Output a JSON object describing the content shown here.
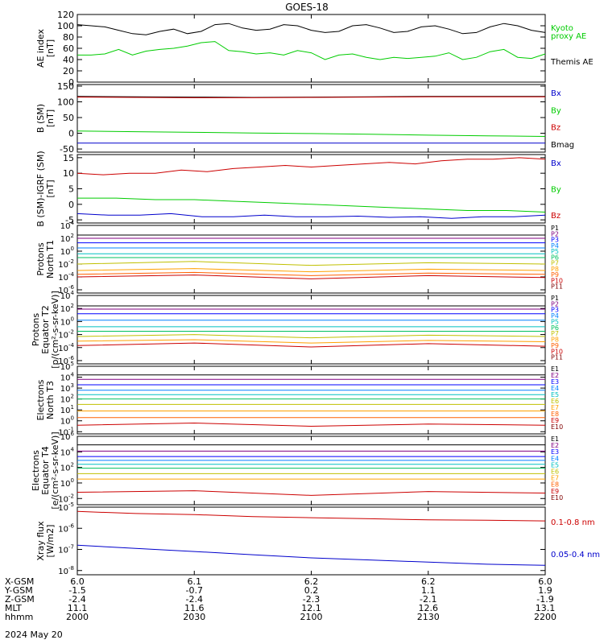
{
  "title": "GOES-18",
  "date_label": "2024 May 20",
  "ephemeris": {
    "rows": [
      {
        "label": "X-GSM",
        "values": [
          "6.0",
          "6.1",
          "6.2",
          "6.2",
          "6.0"
        ]
      },
      {
        "label": "Y-GSM",
        "values": [
          "-1.5",
          "-0.7",
          "0.2",
          "1.1",
          "1.9"
        ]
      },
      {
        "label": "Z-GSM",
        "values": [
          "-2.4",
          "-2.4",
          "-2.3",
          "-2.1",
          "-1.9"
        ]
      },
      {
        "label": "MLT",
        "values": [
          "11.1",
          "11.6",
          "12.1",
          "12.6",
          "13.1"
        ]
      },
      {
        "label": "hhmm",
        "values": [
          "2000",
          "2030",
          "2100",
          "2130",
          "2200"
        ]
      }
    ]
  },
  "chart_data": [
    {
      "id": "ae",
      "type": "line",
      "ylabel": [
        "AE index",
        "[nT]"
      ],
      "ylim": [
        0,
        120
      ],
      "ticks": [
        {
          "v": 0,
          "l": "0"
        },
        {
          "v": 20,
          "l": "20"
        },
        {
          "v": 40,
          "l": "40"
        },
        {
          "v": 60,
          "l": "60"
        },
        {
          "v": 80,
          "l": "80"
        },
        {
          "v": 100,
          "l": "100"
        },
        {
          "v": 120,
          "l": "120"
        }
      ],
      "legend": [
        {
          "label": "Kyoto",
          "color": "#00cc00"
        },
        {
          "label": "proxy AE",
          "color": "#00cc00"
        },
        {
          "label": "Themis AE",
          "color": "#000000"
        }
      ],
      "series": [
        {
          "color": "#000000",
          "values": [
            102,
            100,
            98,
            92,
            86,
            84,
            90,
            94,
            86,
            90,
            102,
            104,
            96,
            92,
            94,
            102,
            100,
            92,
            88,
            90,
            100,
            102,
            96,
            88,
            90,
            98,
            100,
            94,
            86,
            88,
            98,
            104,
            100,
            92,
            88
          ]
        },
        {
          "color": "#00cc00",
          "values": [
            48,
            48,
            50,
            58,
            48,
            55,
            58,
            60,
            64,
            70,
            72,
            56,
            54,
            50,
            52,
            48,
            56,
            52,
            40,
            48,
            50,
            44,
            40,
            44,
            42,
            44,
            46,
            52,
            40,
            44,
            54,
            58,
            44,
            42,
            50
          ]
        }
      ]
    },
    {
      "id": "b",
      "type": "line",
      "ylabel": [
        "B (SM)",
        "[nT]"
      ],
      "ylim": [
        -60,
        155
      ],
      "ticks": [
        {
          "v": -50,
          "l": "-50"
        },
        {
          "v": 0,
          "l": "0"
        },
        {
          "v": 50,
          "l": "50"
        },
        {
          "v": 100,
          "l": "100"
        },
        {
          "v": 150,
          "l": "150"
        }
      ],
      "legend": [
        {
          "label": "Bx",
          "color": "#0000cc"
        },
        {
          "label": "By",
          "color": "#00cc00"
        },
        {
          "label": "Bz",
          "color": "#cc0000"
        },
        {
          "label": "Bmag",
          "color": "#000000"
        }
      ],
      "series": [
        {
          "color": "#0000cc",
          "values": [
            -31,
            -31,
            -31,
            -31,
            -31,
            -31,
            -31,
            -31,
            -31
          ]
        },
        {
          "color": "#00cc00",
          "values": [
            7,
            5,
            3,
            1,
            -1,
            -3,
            -6,
            -8,
            -10
          ]
        },
        {
          "color": "#000000",
          "values": [
            117,
            116,
            115,
            114,
            115,
            116,
            117,
            117,
            117
          ]
        },
        {
          "color": "#cc0000",
          "values": [
            115,
            114,
            113,
            113,
            114,
            115,
            116,
            116,
            116
          ]
        }
      ]
    },
    {
      "id": "bdiff",
      "type": "line",
      "ylabel": [
        "B (SM)-IGRF (SM)",
        "[nT]"
      ],
      "ylim": [
        -6,
        16
      ],
      "ticks": [
        {
          "v": -5,
          "l": "-5"
        },
        {
          "v": 0,
          "l": "0"
        },
        {
          "v": 5,
          "l": "5"
        },
        {
          "v": 10,
          "l": "10"
        },
        {
          "v": 15,
          "l": "15"
        }
      ],
      "legend": [
        {
          "label": "Bx",
          "color": "#0000cc"
        },
        {
          "label": "By",
          "color": "#00cc00"
        },
        {
          "label": "Bz",
          "color": "#cc0000"
        }
      ],
      "series": [
        {
          "color": "#cc0000",
          "values": [
            10,
            9.5,
            10,
            10,
            11,
            10.5,
            11.5,
            12,
            12.5,
            12,
            12.5,
            13,
            13.5,
            13,
            14,
            14.5,
            14.5,
            15,
            14.5
          ]
        },
        {
          "color": "#00cc00",
          "values": [
            2,
            2,
            1.5,
            1.5,
            1,
            0.5,
            0,
            -0.5,
            -1,
            -1.5,
            -2,
            -2,
            -2.5
          ]
        },
        {
          "color": "#0000cc",
          "values": [
            -3,
            -3.5,
            -3.5,
            -3,
            -4,
            -4,
            -3.5,
            -4,
            -4,
            -3.8,
            -4.2,
            -4,
            -4.5,
            -4,
            -4,
            -3.5
          ]
        }
      ]
    },
    {
      "id": "p_north",
      "type": "line",
      "log": true,
      "ylabel": [
        "Protons",
        "North T1"
      ],
      "ylim_exp": [
        -6.5,
        4
      ],
      "ticks": [
        {
          "e": 4
        },
        {
          "e": 2
        },
        {
          "e": 0
        },
        {
          "e": -2
        },
        {
          "e": -4
        },
        {
          "e": -6
        }
      ],
      "legend": [
        {
          "label": "P1",
          "color": "#000000"
        },
        {
          "label": "P2",
          "color": "#800080"
        },
        {
          "label": "P3",
          "color": "#0000ff"
        },
        {
          "label": "P4",
          "color": "#0080ff"
        },
        {
          "label": "P5",
          "color": "#00c0c0"
        },
        {
          "label": "P6",
          "color": "#00c060"
        },
        {
          "label": "P7",
          "color": "#c0c000"
        },
        {
          "label": "P8",
          "color": "#ffa000"
        },
        {
          "label": "P9",
          "color": "#ff6000"
        },
        {
          "label": "P10",
          "color": "#cc0000"
        },
        {
          "label": "P11",
          "color": "#800000"
        }
      ],
      "series": [
        {
          "color": "#000000",
          "levels": [
            2.5
          ]
        },
        {
          "color": "#800080",
          "levels": [
            2.0
          ]
        },
        {
          "color": "#0000ff",
          "levels": [
            1.3
          ]
        },
        {
          "color": "#0080ff",
          "levels": [
            0.5
          ]
        },
        {
          "color": "#00c0c0",
          "levels": [
            -0.4
          ]
        },
        {
          "color": "#00c060",
          "levels": [
            -1.0
          ]
        },
        {
          "color": "#c0c000",
          "levels": [
            -2.0,
            -1.6,
            -2.2,
            -1.8,
            -2.0
          ]
        },
        {
          "color": "#ffa000",
          "levels": [
            -3.0,
            -2.7,
            -3.2,
            -2.8,
            -3.0
          ]
        },
        {
          "color": "#ff6000",
          "levels": [
            -3.6,
            -3.3,
            -3.8,
            -3.4,
            -3.6
          ]
        },
        {
          "color": "#cc0000",
          "levels": [
            -4.0,
            -3.7,
            -4.3,
            -3.8,
            -4.1
          ]
        }
      ]
    },
    {
      "id": "p_equator",
      "type": "line",
      "log": true,
      "ylabel": [
        "Protons",
        "Equator T2",
        "[p/(cm²-s-sr-keV)]"
      ],
      "ylim_exp": [
        -6.5,
        4
      ],
      "ticks": [
        {
          "e": 4
        },
        {
          "e": 2
        },
        {
          "e": 0
        },
        {
          "e": -2
        },
        {
          "e": -4
        },
        {
          "e": -6
        }
      ],
      "legend": [
        {
          "label": "P1",
          "color": "#000000"
        },
        {
          "label": "P2",
          "color": "#800080"
        },
        {
          "label": "P3",
          "color": "#0000ff"
        },
        {
          "label": "P4",
          "color": "#0080ff"
        },
        {
          "label": "P5",
          "color": "#00c0c0"
        },
        {
          "label": "P6",
          "color": "#00c060"
        },
        {
          "label": "P7",
          "color": "#c0c000"
        },
        {
          "label": "P8",
          "color": "#ffa000"
        },
        {
          "label": "P9",
          "color": "#ff6000"
        },
        {
          "label": "P10",
          "color": "#cc0000"
        },
        {
          "label": "P11",
          "color": "#800000"
        }
      ],
      "series": [
        {
          "color": "#000000",
          "levels": [
            2.4
          ]
        },
        {
          "color": "#800080",
          "levels": [
            1.9
          ]
        },
        {
          "color": "#0000ff",
          "levels": [
            1.2
          ]
        },
        {
          "color": "#0080ff",
          "levels": [
            0.2
          ]
        },
        {
          "color": "#00c0c0",
          "levels": [
            -0.8
          ]
        },
        {
          "color": "#00c060",
          "levels": [
            -1.5
          ]
        },
        {
          "color": "#c0c000",
          "levels": [
            -2.3,
            -2.0,
            -2.5,
            -2.1,
            -2.3
          ]
        },
        {
          "color": "#ffa000",
          "levels": [
            -3.0,
            -2.8,
            -3.3,
            -2.9,
            -3.1
          ]
        },
        {
          "color": "#cc0000",
          "levels": [
            -3.7,
            -3.3,
            -3.9,
            -3.4,
            -3.8
          ]
        }
      ]
    },
    {
      "id": "e_north",
      "type": "line",
      "log": true,
      "ylabel": [
        "Electrons",
        "North T3"
      ],
      "ylim_exp": [
        -1.2,
        5
      ],
      "ticks": [
        {
          "e": 5
        },
        {
          "e": 4
        },
        {
          "e": 3
        },
        {
          "e": 2
        },
        {
          "e": 1
        },
        {
          "e": 0
        },
        {
          "e": -1
        }
      ],
      "legend": [
        {
          "label": "E1",
          "color": "#000000"
        },
        {
          "label": "E2",
          "color": "#800080"
        },
        {
          "label": "E3",
          "color": "#0000ff"
        },
        {
          "label": "E4",
          "color": "#0080ff"
        },
        {
          "label": "E5",
          "color": "#00c0c0"
        },
        {
          "label": "E6",
          "color": "#c0c000"
        },
        {
          "label": "E7",
          "color": "#ffa000"
        },
        {
          "label": "E8",
          "color": "#ff6000"
        },
        {
          "label": "E9",
          "color": "#cc0000"
        },
        {
          "label": "E10",
          "color": "#800000"
        }
      ],
      "series": [
        {
          "color": "#000000",
          "levels": [
            4.2
          ]
        },
        {
          "color": "#800080",
          "levels": [
            3.8
          ]
        },
        {
          "color": "#0000ff",
          "levels": [
            3.3
          ]
        },
        {
          "color": "#0080ff",
          "levels": [
            2.8
          ]
        },
        {
          "color": "#00c0c0",
          "levels": [
            2.4
          ]
        },
        {
          "color": "#00c060",
          "levels": [
            2.0
          ]
        },
        {
          "color": "#c0c000",
          "levels": [
            1.5
          ]
        },
        {
          "color": "#ffa000",
          "levels": [
            0.9
          ]
        },
        {
          "color": "#ff6000",
          "levels": [
            0.3
          ]
        },
        {
          "color": "#cc0000",
          "levels": [
            -0.4,
            -0.2,
            -0.5,
            -0.3,
            -0.4
          ]
        }
      ]
    },
    {
      "id": "e_equator",
      "type": "line",
      "log": true,
      "ylabel": [
        "Electrons",
        "Equator T4",
        "[e/(cm²-s-sr-keV)]"
      ],
      "ylim_exp": [
        -2.8,
        6
      ],
      "ticks": [
        {
          "e": 6
        },
        {
          "e": 4
        },
        {
          "e": 2
        },
        {
          "e": 0
        },
        {
          "e": -2
        }
      ],
      "legend": [
        {
          "label": "E1",
          "color": "#000000"
        },
        {
          "label": "E2",
          "color": "#800080"
        },
        {
          "label": "E3",
          "color": "#0000ff"
        },
        {
          "label": "E4",
          "color": "#0080ff"
        },
        {
          "label": "E5",
          "color": "#00c0c0"
        },
        {
          "label": "E6",
          "color": "#c0c000"
        },
        {
          "label": "E7",
          "color": "#ffa000"
        },
        {
          "label": "E8",
          "color": "#ff6000"
        },
        {
          "label": "E9",
          "color": "#cc0000"
        },
        {
          "label": "E10",
          "color": "#800000"
        }
      ],
      "series": [
        {
          "color": "#000000",
          "levels": [
            4.9
          ]
        },
        {
          "color": "#800080",
          "levels": [
            4.1
          ]
        },
        {
          "color": "#0000ff",
          "levels": [
            3.4
          ]
        },
        {
          "color": "#0080ff",
          "levels": [
            2.9
          ]
        },
        {
          "color": "#00c0c0",
          "levels": [
            2.4
          ]
        },
        {
          "color": "#00c060",
          "levels": [
            1.9
          ]
        },
        {
          "color": "#c0c000",
          "levels": [
            1.2
          ]
        },
        {
          "color": "#ffa000",
          "levels": [
            0.5
          ]
        },
        {
          "color": "#cc0000",
          "levels": [
            -1.2,
            -1.0,
            -1.6,
            -1.1,
            -1.3
          ]
        }
      ]
    },
    {
      "id": "xray",
      "type": "line",
      "log": true,
      "ylabel": [
        "Xray flux",
        "[W/m2]"
      ],
      "ylim_exp": [
        -8.2,
        -5
      ],
      "ticks": [
        {
          "e": -5
        },
        {
          "e": -6
        },
        {
          "e": -7
        },
        {
          "e": -8
        }
      ],
      "legend": [
        {
          "label": "0.1-0.8 nm",
          "color": "#cc0000"
        },
        {
          "label": "0.05-0.4 nm",
          "color": "#0000cc"
        }
      ],
      "series": [
        {
          "color": "#cc0000",
          "levels": [
            -5.2,
            -5.3,
            -5.35,
            -5.45,
            -5.5,
            -5.55,
            -5.6,
            -5.62,
            -5.65
          ]
        },
        {
          "color": "#0000cc",
          "levels": [
            -6.8,
            -6.95,
            -7.1,
            -7.25,
            -7.4,
            -7.5,
            -7.6,
            -7.7,
            -7.75
          ]
        }
      ]
    }
  ]
}
